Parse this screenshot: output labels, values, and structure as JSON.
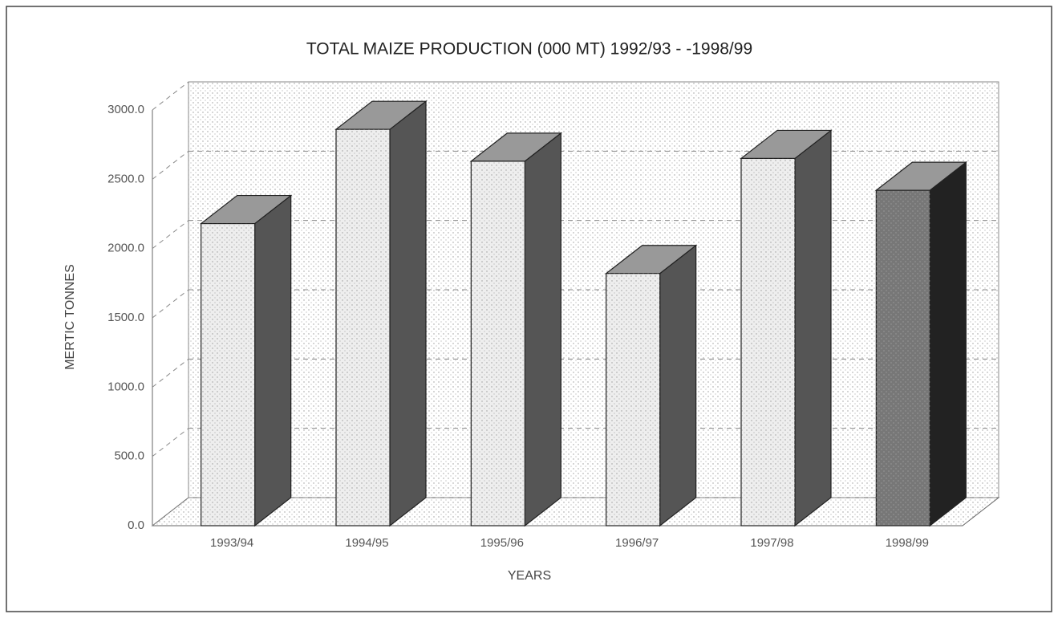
{
  "chart_data": {
    "type": "bar3d",
    "title": "TOTAL MAIZE PRODUCTION (000 MT) 1992/93 - -1998/99",
    "x_label": "YEARS",
    "y_label": "MERTIC TONNES",
    "categories": [
      "1993/94",
      "1994/95",
      "1995/96",
      "1996/97",
      "1997/98",
      "1998/99"
    ],
    "values": [
      2180,
      2860,
      2630,
      1820,
      2650,
      2420
    ],
    "color": "#eeeeee",
    "ylim": [
      0,
      3000
    ],
    "yticks": [
      {
        "value": 0,
        "label": "0.0"
      },
      {
        "value": 500,
        "label": "500.0"
      },
      {
        "value": 1000,
        "label": "1000.0"
      },
      {
        "value": 1500,
        "label": "1500.0"
      },
      {
        "value": 2000,
        "label": "2000.0"
      },
      {
        "value": 2500,
        "label": "2500.0"
      },
      {
        "value": 3000,
        "label": "3000.0"
      }
    ],
    "grid": true
  }
}
